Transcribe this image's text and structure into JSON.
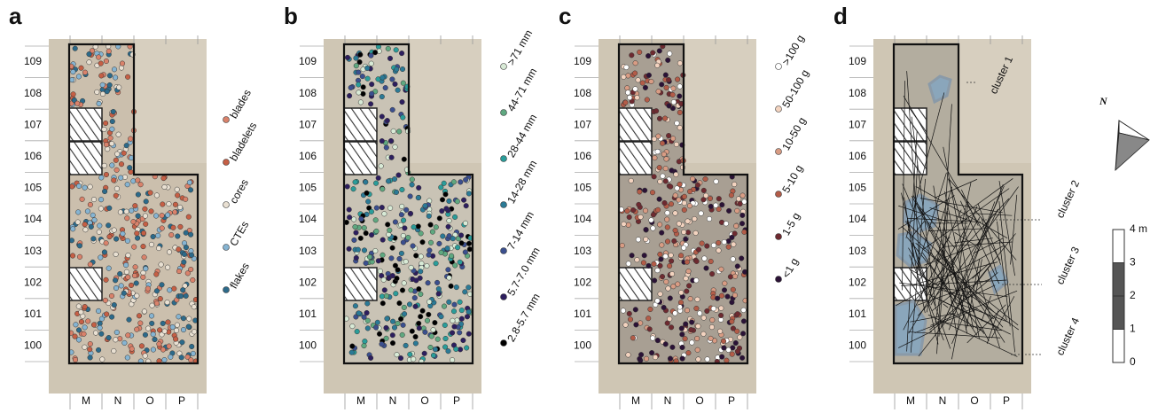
{
  "panels": [
    {
      "letter": "a",
      "legend": [
        {
          "label": "blades",
          "color": "#d9826b"
        },
        {
          "label": "bladelets",
          "color": "#c55f45"
        },
        {
          "label": "cores",
          "color": "#e9e0d2"
        },
        {
          "label": "CTEs",
          "color": "#86b4d2"
        },
        {
          "label": "flakes",
          "color": "#2c6a8a"
        }
      ]
    },
    {
      "letter": "b",
      "legend": [
        {
          "label": ">71 mm",
          "color": "#d8ead6"
        },
        {
          "label": "44-71 mm",
          "color": "#5fa880"
        },
        {
          "label": "28-44 mm",
          "color": "#2a9d9a"
        },
        {
          "label": "14-28 mm",
          "color": "#2b7a96"
        },
        {
          "label": "7-14 mm",
          "color": "#3b4f8e"
        },
        {
          "label": "5.7-7.0 mm",
          "color": "#2d1e5e"
        },
        {
          "label": "2.8-5.7 mm",
          "color": "#000000"
        }
      ]
    },
    {
      "letter": "c",
      "legend": [
        {
          "label": ">100 g",
          "color": "#ffffff"
        },
        {
          "label": "50-100 g",
          "color": "#f3d3bf"
        },
        {
          "label": "10-50 g",
          "color": "#d89c84"
        },
        {
          "label": "5-10 g",
          "color": "#b35c48"
        },
        {
          "label": "1-5 g",
          "color": "#6e2a30"
        },
        {
          "label": "<1 g",
          "color": "#2b1236"
        }
      ]
    },
    {
      "letter": "d",
      "legend": []
    }
  ],
  "rows": [
    "109",
    "108",
    "107",
    "106",
    "105",
    "104",
    "103",
    "102",
    "101",
    "100"
  ],
  "columns": [
    "M",
    "N",
    "O",
    "P"
  ],
  "clusters": [
    "cluster 1",
    "cluster 2",
    "cluster 3",
    "cluster 4"
  ],
  "north": "N",
  "scale": [
    "4 m",
    "3",
    "2",
    "1",
    "0"
  ]
}
